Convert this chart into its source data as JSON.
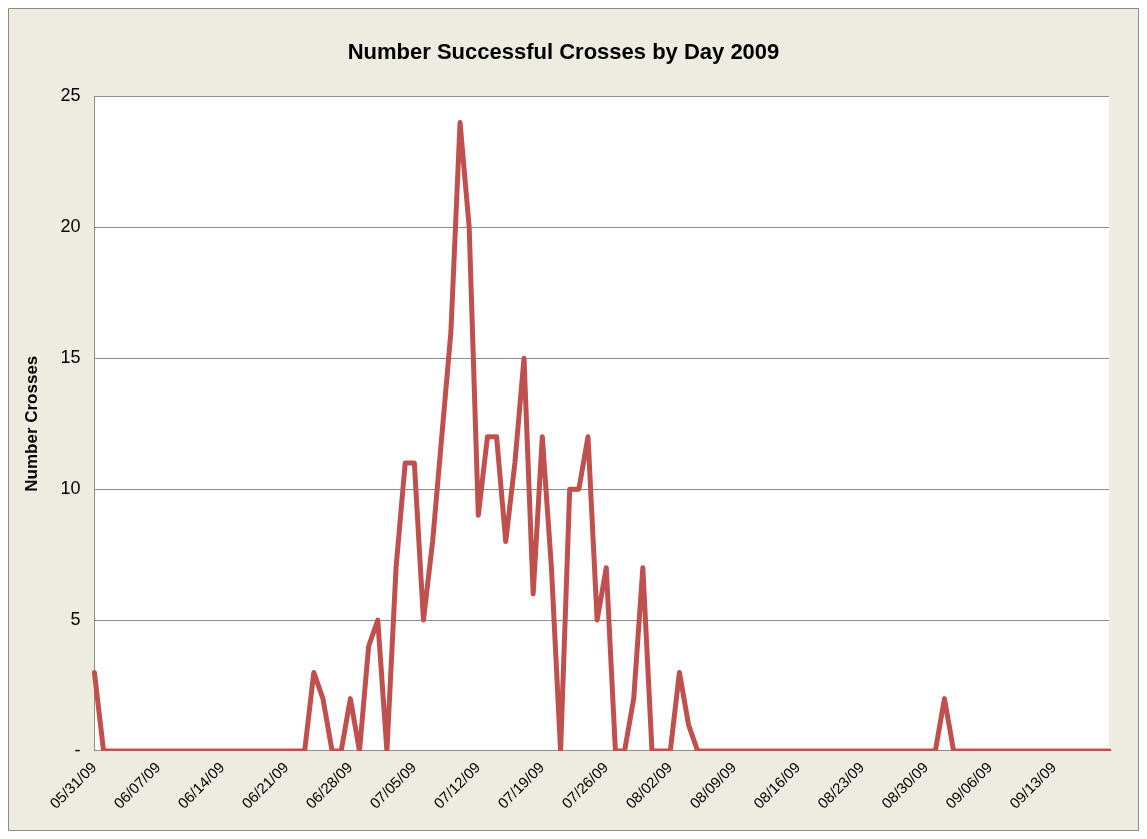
{
  "chart_data": {
    "type": "line",
    "title": "Number Successful Crosses by Day 2009",
    "ylabel": "Number Crosses",
    "categories": [
      "05/31/09",
      null,
      null,
      null,
      null,
      null,
      null,
      "06/07/09",
      null,
      null,
      null,
      null,
      null,
      null,
      "06/14/09",
      null,
      null,
      null,
      null,
      null,
      null,
      "06/21/09",
      null,
      null,
      null,
      null,
      null,
      null,
      "06/28/09",
      null,
      null,
      null,
      null,
      null,
      null,
      "07/05/09",
      null,
      null,
      null,
      null,
      null,
      null,
      "07/12/09",
      null,
      null,
      null,
      null,
      null,
      null,
      "07/19/09",
      null,
      null,
      null,
      null,
      null,
      null,
      "07/26/09",
      null,
      null,
      null,
      null,
      null,
      null,
      "08/02/09",
      null,
      null,
      null,
      null,
      null,
      null,
      "08/09/09",
      null,
      null,
      null,
      null,
      null,
      null,
      "08/16/09",
      null,
      null,
      null,
      null,
      null,
      null,
      "08/23/09",
      null,
      null,
      null,
      null,
      null,
      null,
      "08/30/09",
      null,
      null,
      null,
      null,
      null,
      null,
      "09/06/09",
      null,
      null,
      null,
      null,
      null,
      null,
      "09/13/09",
      null,
      null,
      null,
      null,
      null,
      null
    ],
    "series": [
      {
        "color": "#c0504d",
        "values": [
          3,
          0,
          0,
          0,
          0,
          0,
          0,
          0,
          0,
          0,
          0,
          0,
          0,
          0,
          0,
          0,
          0,
          0,
          0,
          0,
          0,
          0,
          0,
          0,
          3,
          2,
          0,
          0,
          2,
          0,
          4,
          5,
          0,
          7,
          11,
          11,
          5,
          8,
          12,
          16,
          24,
          20,
          9,
          12,
          12,
          8,
          11,
          15,
          6,
          12,
          7,
          0,
          10,
          10,
          12,
          5,
          7,
          0,
          0,
          2,
          7,
          0,
          0,
          0,
          3,
          1,
          0,
          0,
          0,
          0,
          0,
          0,
          0,
          0,
          0,
          0,
          0,
          0,
          0,
          0,
          0,
          0,
          0,
          0,
          0,
          0,
          0,
          0,
          0,
          0,
          0,
          0,
          0,
          2,
          0,
          0,
          0,
          0,
          0,
          0,
          0,
          0,
          0,
          0,
          0,
          0,
          0,
          0,
          0,
          0,
          0,
          0
        ]
      }
    ],
    "ylim": [
      0,
      25
    ],
    "yticks": [
      {
        "value": 0,
        "label": "-"
      },
      5,
      10,
      15,
      20,
      25
    ],
    "grid": "y",
    "legend": false,
    "marker": "none",
    "line_style": "solid"
  }
}
